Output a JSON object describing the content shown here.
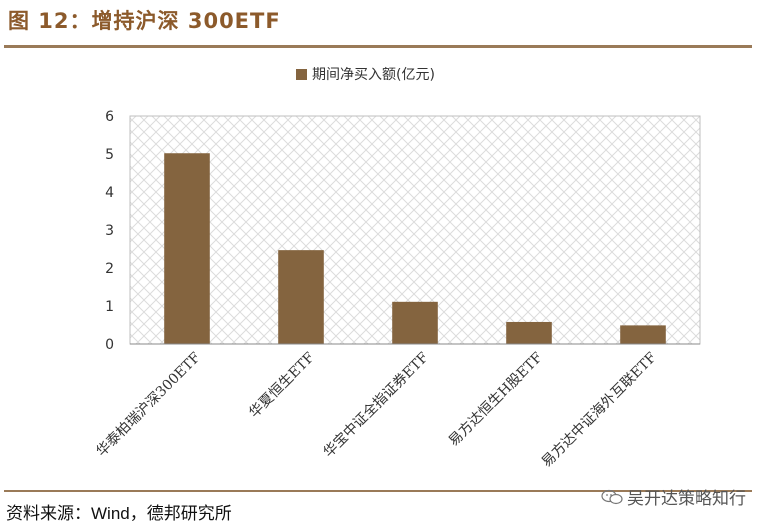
{
  "figure": {
    "title": "图 12：增持沪深 300ETF",
    "source": "资料来源：Wind，德邦研究所",
    "watermark": "吴开达策略知行",
    "watermark_icon": "wechat-icon"
  },
  "chart_data": {
    "type": "bar",
    "title": "",
    "xlabel": "",
    "ylabel": "",
    "categories": [
      "华泰柏瑞沪深300ETF",
      "华夏恒生ETF",
      "华宝中证全指证券ETF",
      "易方达恒生H股ETF",
      "易方达中证海外互联ETF"
    ],
    "series": [
      {
        "name": "期间净买入额(亿元)",
        "values": [
          5.02,
          2.47,
          1.11,
          0.58,
          0.49
        ],
        "color": "#84643f"
      }
    ],
    "ylim": [
      0,
      6
    ],
    "yticks": [
      0,
      1,
      2,
      3,
      4,
      5,
      6
    ],
    "legend_position": "top-center",
    "grid": "crosshatch background"
  }
}
